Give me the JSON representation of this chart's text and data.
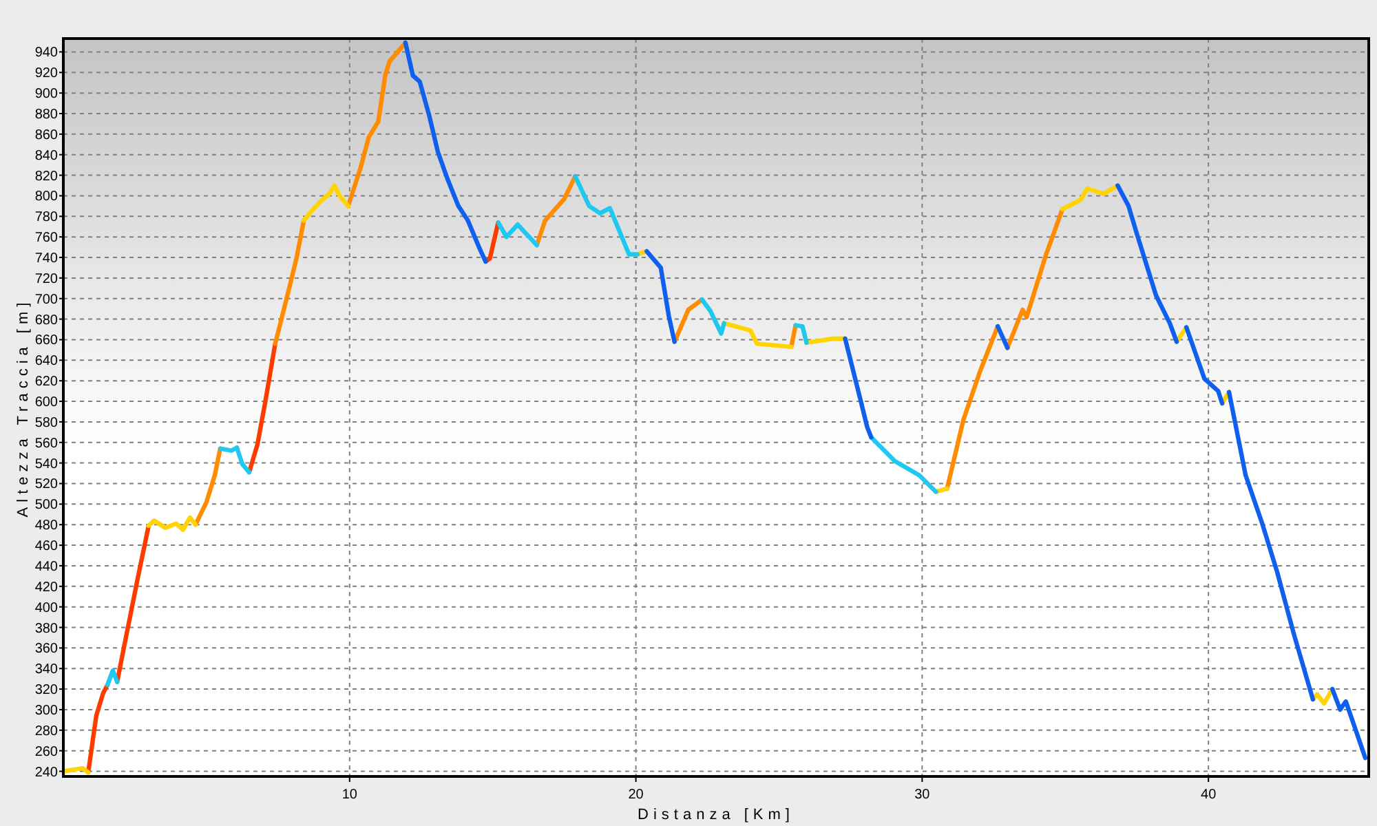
{
  "chart_data": {
    "type": "line",
    "xlabel": "Distanza [Km]",
    "ylabel": "Altezza Traccia [m]",
    "xlim": [
      0,
      45.6
    ],
    "ylim": [
      235,
      953
    ],
    "xticks": [
      10,
      20,
      30,
      40
    ],
    "yticks": [
      240,
      260,
      280,
      300,
      320,
      340,
      360,
      380,
      400,
      420,
      440,
      460,
      480,
      500,
      520,
      540,
      560,
      580,
      600,
      620,
      640,
      660,
      680,
      700,
      720,
      740,
      760,
      780,
      800,
      820,
      840,
      860,
      880,
      900,
      920,
      940
    ],
    "grid": true,
    "line_style": "solid",
    "marker": "none",
    "series": [
      {
        "color": "#ff3c00",
        "x": [
          0.87,
          1.15,
          1.39,
          1.54,
          1.71,
          1.88,
          2.12,
          2.6,
          2.98,
          4.7,
          6.49,
          6.78,
          7.07,
          7.4,
          11,
          14.75,
          14.9,
          15.19
        ],
        "values": [
          239,
          294,
          316,
          324,
          null,
          327,
          361,
          428,
          479,
          null,
          531,
          558,
          602,
          656,
          null,
          736,
          739,
          774
        ]
      },
      {
        "color": "#ff8c00",
        "x": [
          4.62,
          5.0,
          5.29,
          5.48,
          6.9,
          7.4,
          7.88,
          8.15,
          8.4,
          9.6,
          9.95,
          10.38,
          10.67,
          11.0,
          11.25,
          11.4,
          11.68,
          11.95,
          14,
          16.54,
          16.83,
          17.5,
          17.88,
          19.5,
          21.35,
          21.83,
          22.31,
          24,
          25.43,
          25.58,
          28,
          30.87,
          31.44,
          32.02,
          32.64,
          32.81,
          32.98,
          33.51,
          33.65,
          34.33,
          34.9
        ],
        "values": [
          480,
          502,
          528,
          554,
          null,
          656,
          709,
          740,
          776,
          null,
          790,
          827,
          857,
          872,
          918,
          931,
          940,
          949,
          null,
          752,
          776,
          797,
          819,
          null,
          658,
          689,
          699,
          null,
          653,
          674,
          null,
          515,
          582,
          629,
          673,
          null,
          652,
          689,
          682,
          743,
          787
        ]
      },
      {
        "color": "#ffd400",
        "x": [
          0,
          0.67,
          0.87,
          1.9,
          2.98,
          3.17,
          3.56,
          3.94,
          4.18,
          4.42,
          4.62,
          6.6,
          8.4,
          8.7,
          9.0,
          9.3,
          9.47,
          9.65,
          9.95,
          16,
          20.05,
          20.38,
          21.7,
          23.08,
          24.0,
          24.23,
          25.43,
          25.7,
          25.96,
          26.88,
          27.31,
          28.9,
          30.48,
          30.87,
          32.9,
          34.9,
          35.53,
          35.77,
          36.35,
          36.83,
          37.9,
          38.89,
          39.23,
          39.86,
          40.48,
          40.72,
          42.3,
          43.65,
          43.8,
          44.04,
          44.33
        ],
        "values": [
          240,
          243,
          239,
          null,
          479,
          484,
          477,
          481,
          475,
          487,
          480,
          null,
          776,
          786,
          795,
          802,
          810,
          800,
          790,
          null,
          743,
          746,
          null,
          676,
          669,
          656,
          653,
          null,
          657,
          661,
          661,
          null,
          512,
          515,
          null,
          787,
          796,
          807,
          802,
          810,
          null,
          658,
          672,
          null,
          598,
          609,
          null,
          310,
          315,
          306,
          320
        ]
      },
      {
        "color": "#1ec8f0",
        "x": [
          1.54,
          1.73,
          1.88,
          3.7,
          5.48,
          5.87,
          6.06,
          6.25,
          6.49,
          12.6,
          15.19,
          15.48,
          15.87,
          16.54,
          17.2,
          17.88,
          18.37,
          18.75,
          19.09,
          19.42,
          19.76,
          20.05,
          21.2,
          22.31,
          22.6,
          22.98,
          23.08,
          24.4,
          25.58,
          25.82,
          25.96,
          27,
          28.22,
          29.04,
          29.9,
          30.48
        ],
        "values": [
          324,
          338,
          327,
          null,
          554,
          552,
          555,
          539,
          531,
          null,
          774,
          760,
          772,
          752,
          null,
          819,
          790,
          783,
          788,
          766,
          743,
          743,
          null,
          699,
          688,
          666,
          676,
          null,
          674,
          673,
          657,
          null,
          565,
          542,
          528,
          512
        ]
      },
      {
        "color": "#1060f0",
        "x": [
          11.95,
          12.21,
          12.45,
          12.79,
          13.08,
          13.41,
          13.8,
          14.13,
          14.52,
          14.75,
          17.5,
          20.38,
          20.87,
          21.15,
          21.35,
          24.4,
          27.31,
          27.84,
          28.08,
          28.22,
          30.4,
          32.64,
          32.98,
          34.9,
          36.83,
          37.21,
          37.5,
          38.17,
          38.65,
          38.89,
          39.06,
          39.23,
          39.86,
          40.34,
          40.48,
          40.6,
          40.72,
          41.3,
          41.88,
          42.4,
          42.98,
          43.65,
          44.1,
          44.33,
          44.6,
          44.8,
          45.48
        ],
        "values": [
          949,
          917,
          911,
          877,
          843,
          817,
          790,
          776,
          750,
          736,
          null,
          746,
          730,
          683,
          658,
          null,
          661,
          602,
          575,
          565,
          null,
          673,
          652,
          null,
          810,
          790,
          763,
          703,
          676,
          658,
          null,
          672,
          622,
          610,
          598,
          null,
          609,
          528,
          481,
          434,
          374,
          310,
          null,
          320,
          300,
          308,
          253
        ]
      }
    ]
  }
}
